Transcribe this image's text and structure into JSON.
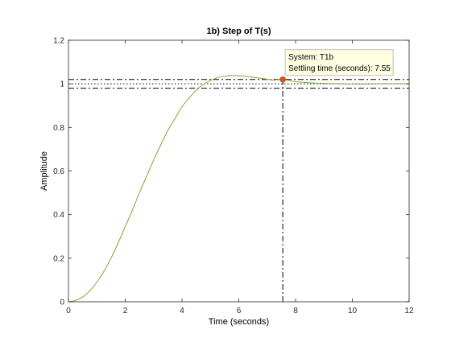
{
  "chart_data": {
    "type": "line",
    "title": "1b) Step of T(s)",
    "xlabel": "Time (seconds)",
    "ylabel": "Amplitude",
    "xlim": [
      0,
      12
    ],
    "ylim": [
      0,
      1.2
    ],
    "xticks": [
      0,
      2,
      4,
      6,
      8,
      10,
      12
    ],
    "yticks": [
      0,
      0.2,
      0.4,
      0.6,
      0.8,
      1,
      1.2
    ],
    "xtick_labels": [
      "0",
      "2",
      "4",
      "6",
      "8",
      "10",
      "12"
    ],
    "ytick_labels": [
      "0",
      "0.2",
      "0.4",
      "0.6",
      "0.8",
      "1",
      "1.2"
    ],
    "grid": false,
    "series": [
      {
        "color": "#77AC30",
        "x": [
          0,
          0.25,
          0.5,
          0.75,
          1,
          1.25,
          1.5,
          1.75,
          2,
          2.25,
          2.5,
          2.75,
          3,
          3.25,
          3.5,
          3.75,
          4,
          4.25,
          4.5,
          4.75,
          5,
          5.25,
          5.5,
          5.75,
          6,
          6.25,
          6.5,
          6.75,
          7,
          7.25,
          7.55,
          8,
          8.5,
          9,
          9.5,
          10,
          10.5,
          11,
          11.5,
          12
        ],
        "y": [
          0,
          0.006,
          0.022,
          0.05,
          0.09,
          0.14,
          0.2,
          0.27,
          0.345,
          0.42,
          0.5,
          0.575,
          0.65,
          0.72,
          0.785,
          0.84,
          0.895,
          0.935,
          0.97,
          0.997,
          1.015,
          1.028,
          1.035,
          1.038,
          1.037,
          1.034,
          1.03,
          1.026,
          1.021,
          1.017,
          1.02,
          1.01,
          1.005,
          1.002,
          1.0,
          0.999,
          0.999,
          1.0,
          1.0,
          1.0
        ]
      }
    ],
    "reference_lines": {
      "y_dashdot": [
        0.98,
        1.02
      ],
      "y_dotted": [
        1.0
      ],
      "x_dashdot": [
        7.55
      ]
    },
    "marker": {
      "x": 7.55,
      "y": 1.02,
      "color": "#D95319"
    },
    "datatip": {
      "line1": "System: T1b",
      "line2": "Settling time (seconds): 7.55"
    }
  }
}
